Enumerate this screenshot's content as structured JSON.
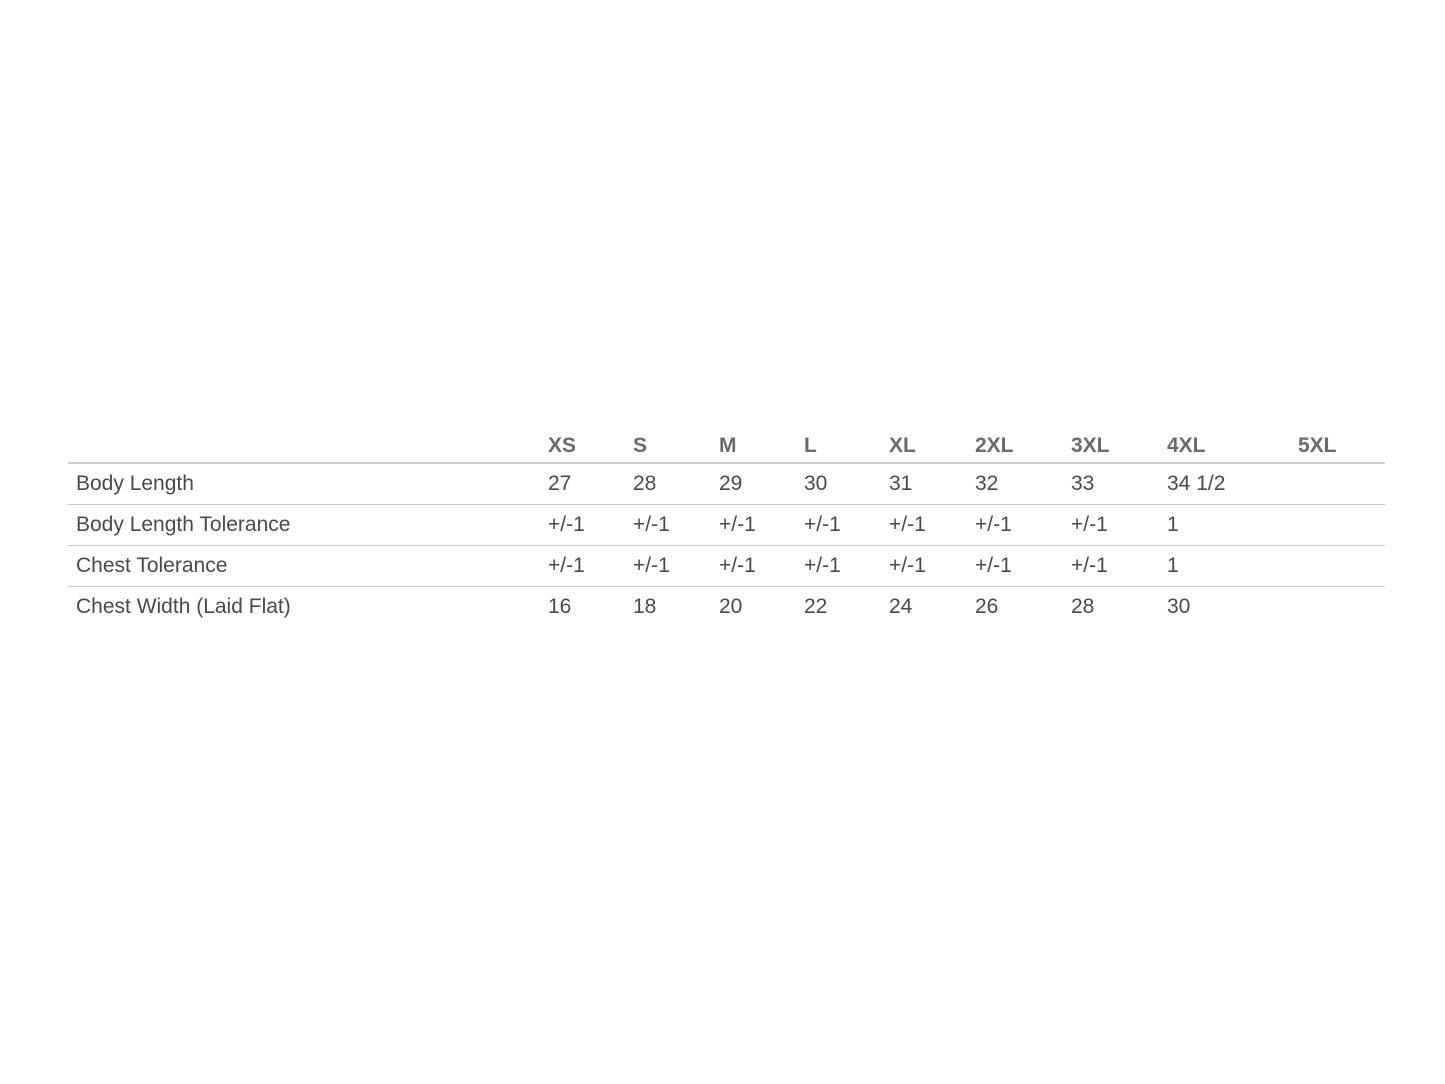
{
  "size_chart": {
    "columns": [
      "XS",
      "S",
      "M",
      "L",
      "XL",
      "2XL",
      "3XL",
      "4XL",
      "5XL"
    ],
    "rows": [
      {
        "label": "Body Length",
        "values": [
          "27",
          "28",
          "29",
          "30",
          "31",
          "32",
          "33",
          "34 1/2",
          ""
        ]
      },
      {
        "label": "Body Length Tolerance",
        "values": [
          "+/-1",
          "+/-1",
          "+/-1",
          "+/-1",
          "+/-1",
          "+/-1",
          "+/-1",
          "1",
          ""
        ]
      },
      {
        "label": "Chest Tolerance",
        "values": [
          "+/-1",
          "+/-1",
          "+/-1",
          "+/-1",
          "+/-1",
          "+/-1",
          "+/-1",
          "1",
          ""
        ]
      },
      {
        "label": "Chest Width (Laid Flat)",
        "values": [
          "16",
          "18",
          "20",
          "22",
          "24",
          "26",
          "28",
          "30",
          ""
        ]
      }
    ]
  }
}
